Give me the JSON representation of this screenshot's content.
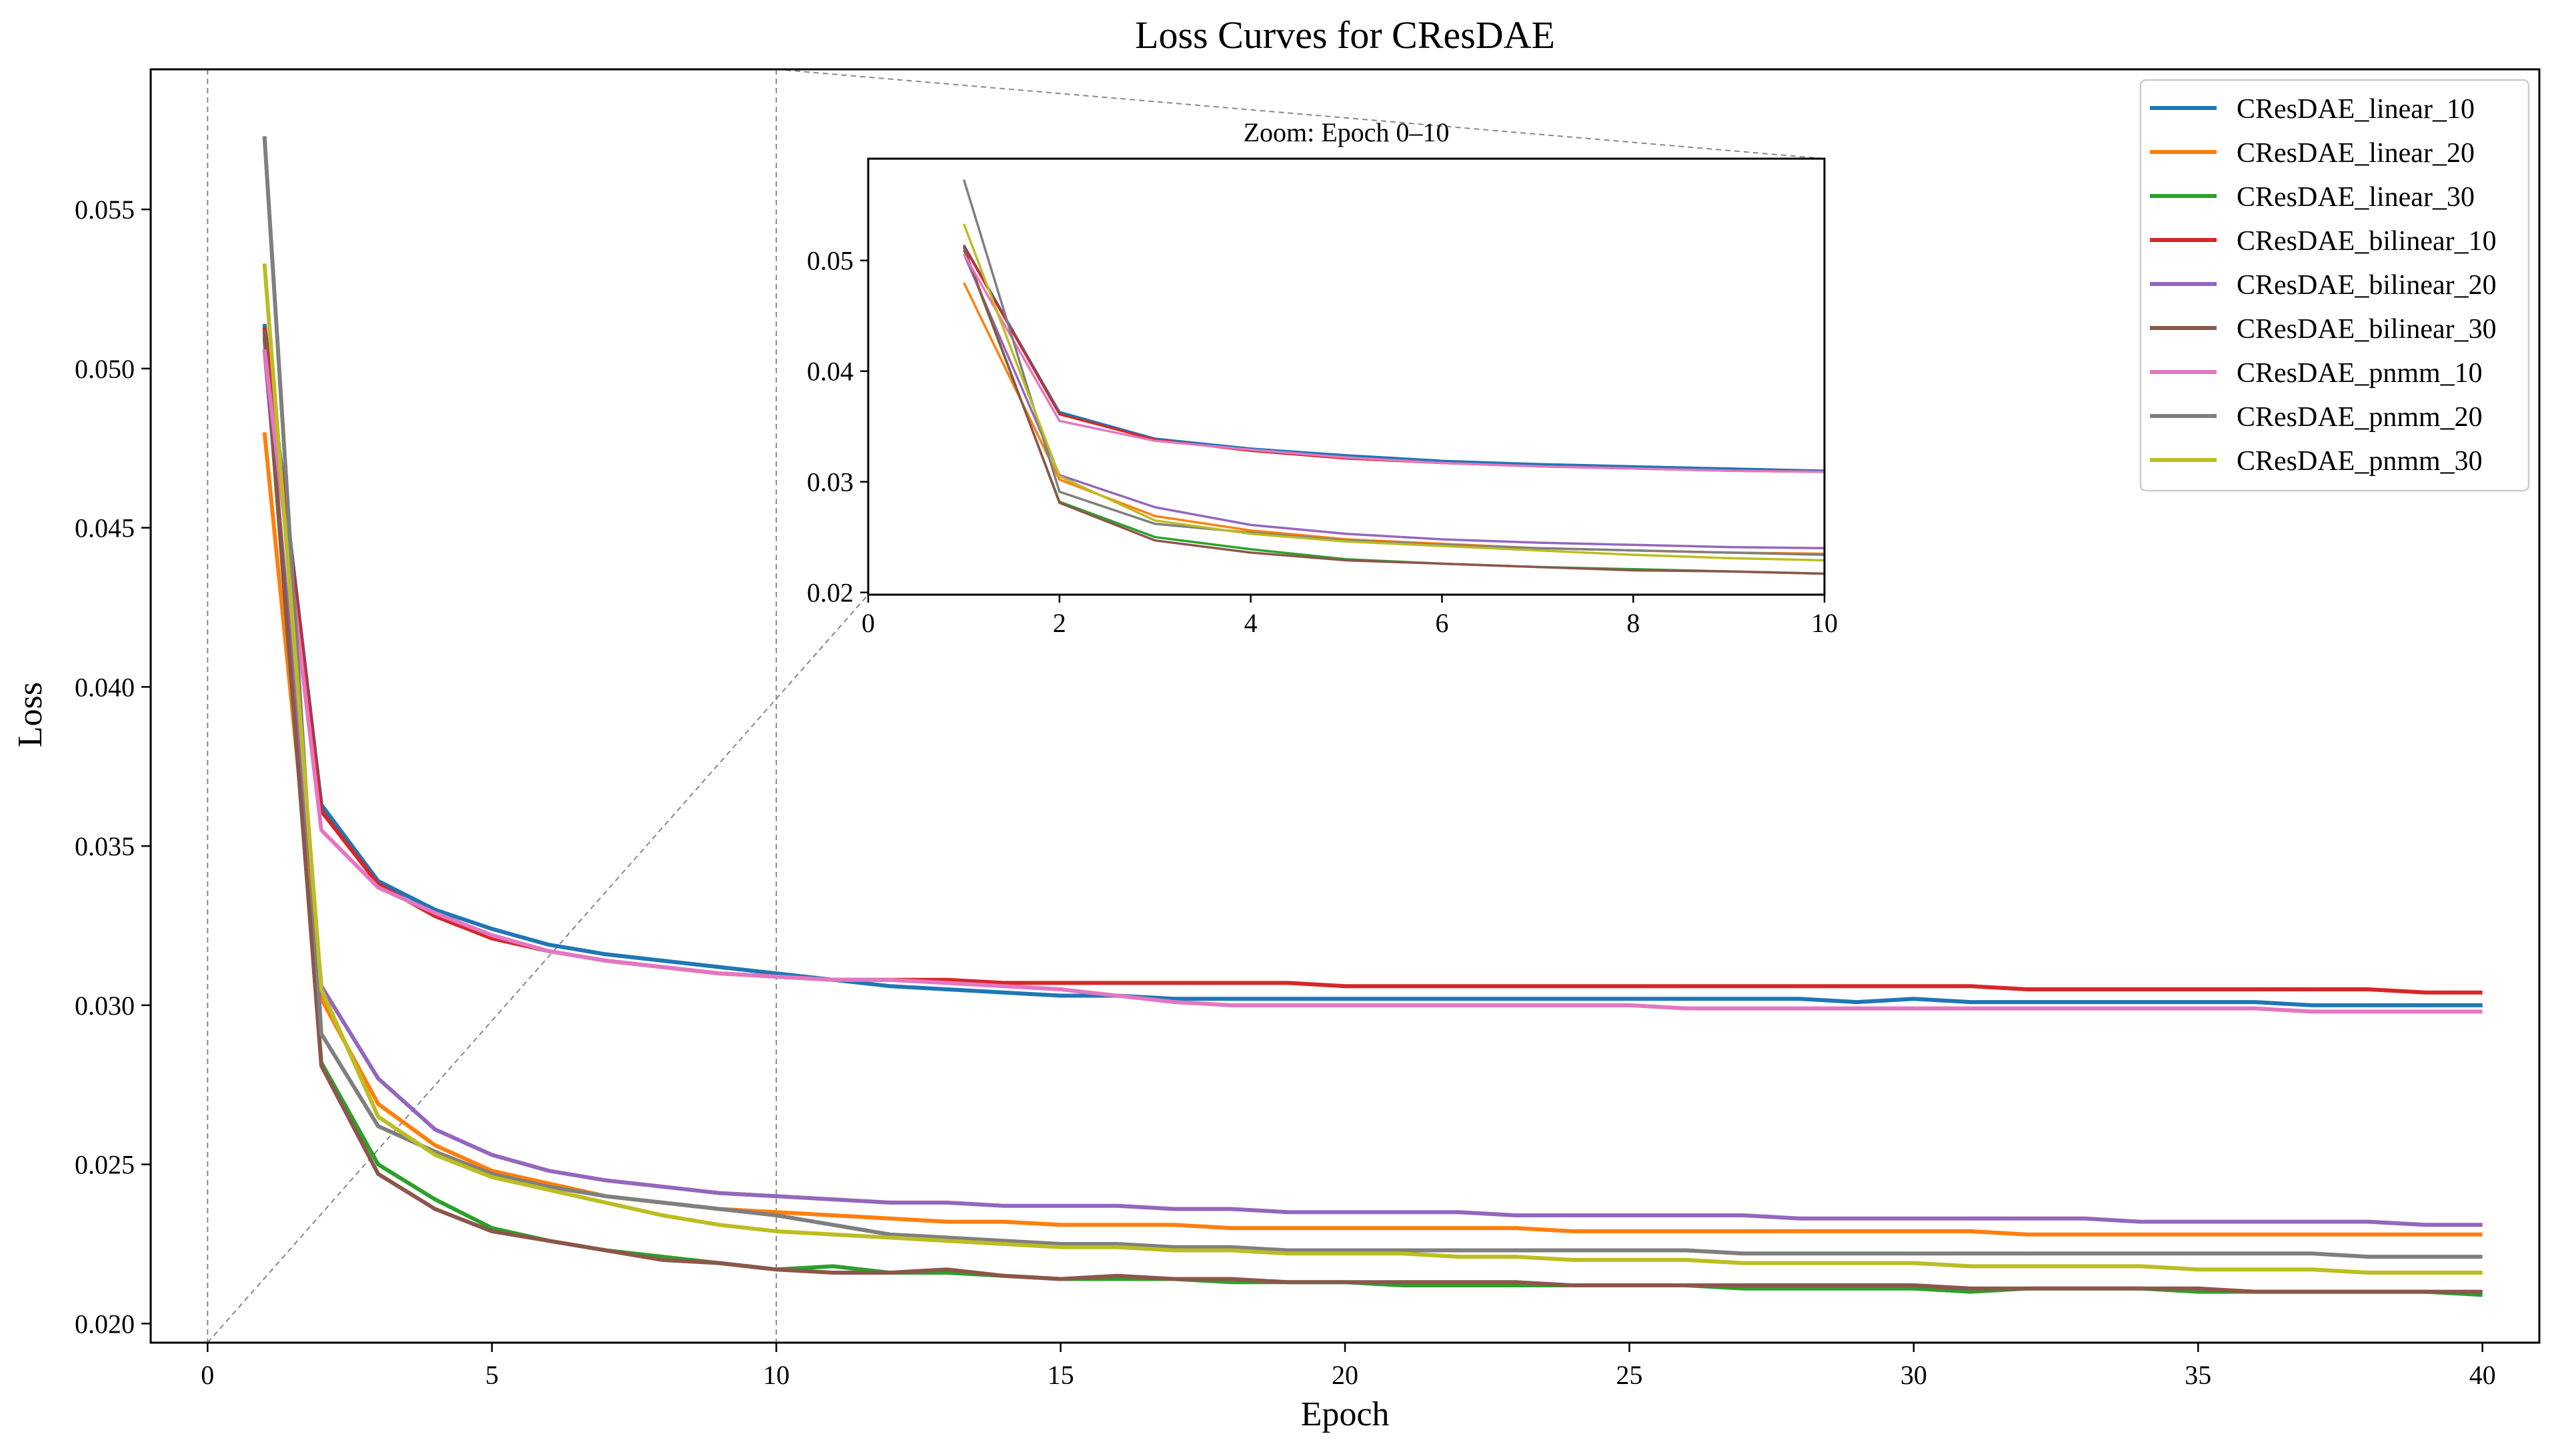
{
  "chart_data": {
    "type": "line",
    "title": "Loss Curves for CResDAE",
    "xlabel": "Epoch",
    "ylabel": "Loss",
    "xlim": [
      -1,
      41
    ],
    "ylim": [
      0.0194,
      0.0594
    ],
    "xticks": [
      0,
      5,
      10,
      15,
      20,
      25,
      30,
      35,
      40
    ],
    "yticks": [
      0.02,
      0.025,
      0.03,
      0.035,
      0.04,
      0.045,
      0.05,
      0.055
    ],
    "ytick_labels": [
      "0.020",
      "0.025",
      "0.030",
      "0.035",
      "0.040",
      "0.045",
      "0.050",
      "0.055"
    ],
    "legend_position": "top-right",
    "zoom_guides": {
      "x_start": 0,
      "x_end": 10
    },
    "inset": {
      "title": "Zoom: Epoch 0–10",
      "xlim": [
        0,
        10
      ],
      "ylim": [
        0.0198,
        0.0592
      ],
      "xticks": [
        0,
        2,
        4,
        6,
        8,
        10
      ],
      "yticks": [
        0.02,
        0.03,
        0.04,
        0.05
      ],
      "ytick_labels": [
        "0.02",
        "0.03",
        "0.04",
        "0.05"
      ]
    },
    "x": [
      1,
      2,
      3,
      4,
      5,
      6,
      7,
      8,
      9,
      10,
      11,
      12,
      13,
      14,
      15,
      16,
      17,
      18,
      19,
      20,
      21,
      22,
      23,
      24,
      25,
      26,
      27,
      28,
      29,
      30,
      31,
      32,
      33,
      34,
      35,
      36,
      37,
      38,
      39,
      40
    ],
    "series": [
      {
        "name": "CResDAE_linear_10",
        "color": "#1f77b4",
        "values": [
          0.0514,
          0.0363,
          0.0339,
          0.033,
          0.0324,
          0.0319,
          0.0316,
          0.0314,
          0.0312,
          0.031,
          0.0308,
          0.0306,
          0.0305,
          0.0304,
          0.0303,
          0.0303,
          0.0302,
          0.0302,
          0.0302,
          0.0302,
          0.0302,
          0.0302,
          0.0302,
          0.0302,
          0.0302,
          0.0302,
          0.0302,
          0.0302,
          0.0301,
          0.0302,
          0.0301,
          0.0301,
          0.0301,
          0.0301,
          0.0301,
          0.0301,
          0.03,
          0.03,
          0.03,
          0.03
        ]
      },
      {
        "name": "CResDAE_linear_20",
        "color": "#ff7f0e",
        "values": [
          0.048,
          0.0302,
          0.0269,
          0.0256,
          0.0248,
          0.0244,
          0.024,
          0.0238,
          0.0236,
          0.0235,
          0.0234,
          0.0233,
          0.0232,
          0.0232,
          0.0231,
          0.0231,
          0.0231,
          0.023,
          0.023,
          0.023,
          0.023,
          0.023,
          0.023,
          0.0229,
          0.0229,
          0.0229,
          0.0229,
          0.0229,
          0.0229,
          0.0229,
          0.0229,
          0.0228,
          0.0228,
          0.0228,
          0.0228,
          0.0228,
          0.0228,
          0.0228,
          0.0228,
          0.0228
        ]
      },
      {
        "name": "CResDAE_linear_30",
        "color": "#2ca02c",
        "values": [
          0.051,
          0.0282,
          0.025,
          0.0239,
          0.023,
          0.0226,
          0.0223,
          0.0221,
          0.0219,
          0.0217,
          0.0218,
          0.0216,
          0.0216,
          0.0215,
          0.0214,
          0.0214,
          0.0214,
          0.0213,
          0.0213,
          0.0213,
          0.0212,
          0.0212,
          0.0212,
          0.0212,
          0.0212,
          0.0212,
          0.0211,
          0.0211,
          0.0211,
          0.0211,
          0.021,
          0.0211,
          0.0211,
          0.0211,
          0.021,
          0.021,
          0.021,
          0.021,
          0.021,
          0.0209
        ]
      },
      {
        "name": "CResDAE_bilinear_10",
        "color": "#d62728",
        "values": [
          0.0513,
          0.0361,
          0.0338,
          0.0328,
          0.0321,
          0.0317,
          0.0314,
          0.0312,
          0.031,
          0.0309,
          0.0308,
          0.0308,
          0.0308,
          0.0307,
          0.0307,
          0.0307,
          0.0307,
          0.0307,
          0.0307,
          0.0306,
          0.0306,
          0.0306,
          0.0306,
          0.0306,
          0.0306,
          0.0306,
          0.0306,
          0.0306,
          0.0306,
          0.0306,
          0.0306,
          0.0305,
          0.0305,
          0.0305,
          0.0305,
          0.0305,
          0.0305,
          0.0305,
          0.0304,
          0.0304
        ]
      },
      {
        "name": "CResDAE_bilinear_20",
        "color": "#9467bd",
        "values": [
          0.0506,
          0.0306,
          0.0277,
          0.0261,
          0.0253,
          0.0248,
          0.0245,
          0.0243,
          0.0241,
          0.024,
          0.0239,
          0.0238,
          0.0238,
          0.0237,
          0.0237,
          0.0237,
          0.0236,
          0.0236,
          0.0235,
          0.0235,
          0.0235,
          0.0235,
          0.0234,
          0.0234,
          0.0234,
          0.0234,
          0.0234,
          0.0233,
          0.0233,
          0.0233,
          0.0233,
          0.0233,
          0.0233,
          0.0232,
          0.0232,
          0.0232,
          0.0232,
          0.0232,
          0.0231,
          0.0231
        ]
      },
      {
        "name": "CResDAE_bilinear_30",
        "color": "#8c564b",
        "values": [
          0.0512,
          0.0281,
          0.0247,
          0.0236,
          0.0229,
          0.0226,
          0.0223,
          0.022,
          0.0219,
          0.0217,
          0.0216,
          0.0216,
          0.0217,
          0.0215,
          0.0214,
          0.0215,
          0.0214,
          0.0214,
          0.0213,
          0.0213,
          0.0213,
          0.0213,
          0.0213,
          0.0212,
          0.0212,
          0.0212,
          0.0212,
          0.0212,
          0.0212,
          0.0212,
          0.0211,
          0.0211,
          0.0211,
          0.0211,
          0.0211,
          0.021,
          0.021,
          0.021,
          0.021,
          0.021
        ]
      },
      {
        "name": "CResDAE_pnmm_10",
        "color": "#e377c2",
        "values": [
          0.0506,
          0.0355,
          0.0337,
          0.0329,
          0.0322,
          0.0317,
          0.0314,
          0.0312,
          0.031,
          0.0309,
          0.0308,
          0.0308,
          0.0307,
          0.0306,
          0.0305,
          0.0303,
          0.0301,
          0.03,
          0.03,
          0.03,
          0.03,
          0.03,
          0.03,
          0.03,
          0.03,
          0.0299,
          0.0299,
          0.0299,
          0.0299,
          0.0299,
          0.0299,
          0.0299,
          0.0299,
          0.0299,
          0.0299,
          0.0299,
          0.0298,
          0.0298,
          0.0298,
          0.0298
        ]
      },
      {
        "name": "CResDAE_pnmm_20",
        "color": "#7f7f7f",
        "values": [
          0.0573,
          0.0291,
          0.0262,
          0.0254,
          0.0247,
          0.0243,
          0.024,
          0.0238,
          0.0236,
          0.0234,
          0.0231,
          0.0228,
          0.0227,
          0.0226,
          0.0225,
          0.0225,
          0.0224,
          0.0224,
          0.0223,
          0.0223,
          0.0223,
          0.0223,
          0.0223,
          0.0223,
          0.0223,
          0.0223,
          0.0222,
          0.0222,
          0.0222,
          0.0222,
          0.0222,
          0.0222,
          0.0222,
          0.0222,
          0.0222,
          0.0222,
          0.0222,
          0.0221,
          0.0221,
          0.0221
        ]
      },
      {
        "name": "CResDAE_pnmm_30",
        "color": "#bcbd22",
        "values": [
          0.0533,
          0.0305,
          0.0265,
          0.0253,
          0.0246,
          0.0242,
          0.0238,
          0.0234,
          0.0231,
          0.0229,
          0.0228,
          0.0227,
          0.0226,
          0.0225,
          0.0224,
          0.0224,
          0.0223,
          0.0223,
          0.0222,
          0.0222,
          0.0222,
          0.0221,
          0.0221,
          0.022,
          0.022,
          0.022,
          0.0219,
          0.0219,
          0.0219,
          0.0219,
          0.0218,
          0.0218,
          0.0218,
          0.0218,
          0.0217,
          0.0217,
          0.0217,
          0.0216,
          0.0216,
          0.0216
        ]
      }
    ]
  }
}
